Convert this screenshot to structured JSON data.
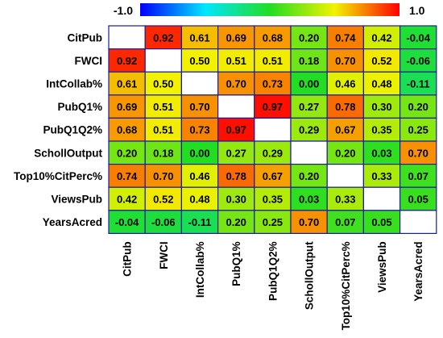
{
  "chart_data": {
    "type": "heatmap",
    "title": "",
    "variables": [
      "CitPub",
      "FWCI",
      "IntCollab%",
      "PubQ1%",
      "PubQ1Q2%",
      "SchollOutput",
      "Top10%CitPerc%",
      "ViewsPub",
      "YearsAcred"
    ],
    "matrix": [
      [
        null,
        0.92,
        0.61,
        0.69,
        0.68,
        0.2,
        0.74,
        0.42,
        -0.04
      ],
      [
        0.92,
        null,
        0.5,
        0.51,
        0.51,
        0.18,
        0.7,
        0.52,
        -0.06
      ],
      [
        0.61,
        0.5,
        null,
        0.7,
        0.73,
        0.0,
        0.46,
        0.48,
        -0.11
      ],
      [
        0.69,
        0.51,
        0.7,
        null,
        0.97,
        0.27,
        0.78,
        0.3,
        0.2
      ],
      [
        0.68,
        0.51,
        0.73,
        0.97,
        null,
        0.29,
        0.67,
        0.35,
        0.25
      ],
      [
        0.2,
        0.18,
        0.0,
        0.27,
        0.29,
        null,
        0.2,
        0.03,
        0.7
      ],
      [
        0.74,
        0.7,
        0.46,
        0.78,
        0.67,
        0.2,
        null,
        0.33,
        0.07
      ],
      [
        0.42,
        0.52,
        0.48,
        0.3,
        0.35,
        0.03,
        0.33,
        null,
        0.05
      ],
      [
        -0.04,
        -0.06,
        -0.11,
        0.2,
        0.25,
        0.7,
        0.07,
        0.05,
        null
      ]
    ],
    "colorbar": {
      "min": -1.0,
      "max": 1.0,
      "min_label": "-1.0",
      "max_label": "1.0",
      "colors": [
        "#0000ff",
        "#00e6ff",
        "#22dd22",
        "#f2f200",
        "#ff0000"
      ]
    },
    "diagonal_color": "#ffffff",
    "grid_color": "#1a1aa0"
  }
}
